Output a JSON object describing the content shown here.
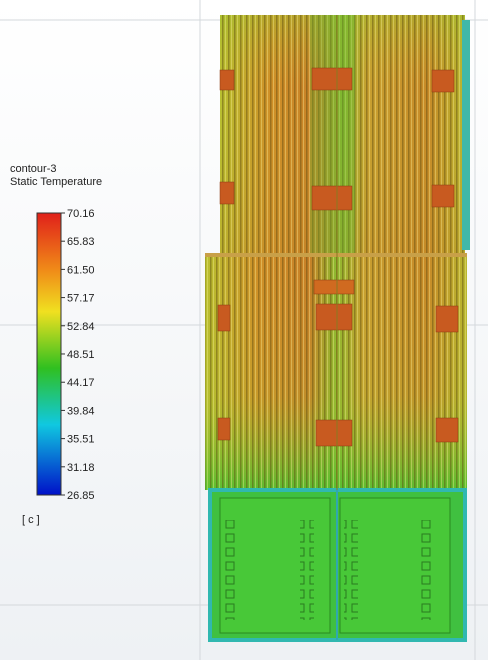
{
  "legend": {
    "name": "contour-3",
    "quantity": "Static Temperature",
    "ticks": [
      70.16,
      65.83,
      61.5,
      57.17,
      52.84,
      48.51,
      44.17,
      39.84,
      35.51,
      31.18,
      26.85
    ],
    "tick_labels": [
      "70.16",
      "65.83",
      "61.50",
      "57.17",
      "52.84",
      "48.51",
      "44.17",
      "39.84",
      "35.51",
      "31.18",
      "26.85"
    ],
    "unit": "[ c ]"
  }
}
